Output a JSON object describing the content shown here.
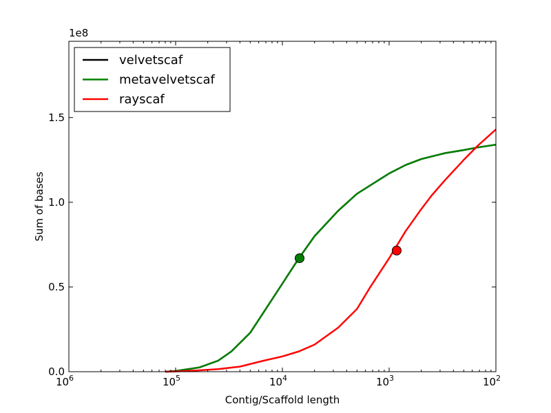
{
  "chart_data": {
    "type": "line",
    "xlabel": "Contig/Scaffold length",
    "ylabel": "Sum of bases",
    "y_offset_label": "1e8",
    "x_scale": "log",
    "x_inverted": true,
    "xlim": [
      1000000,
      100
    ],
    "ylim": [
      0,
      195000000
    ],
    "x_ticks": [
      {
        "value": 1000000,
        "base": "10",
        "exp": "6"
      },
      {
        "value": 100000,
        "base": "10",
        "exp": "5"
      },
      {
        "value": 10000,
        "base": "10",
        "exp": "4"
      },
      {
        "value": 1000,
        "base": "10",
        "exp": "3"
      },
      {
        "value": 100,
        "base": "10",
        "exp": "2"
      }
    ],
    "y_ticks": [
      {
        "value": 0,
        "label": "0.0"
      },
      {
        "value": 50000000,
        "label": "0.5"
      },
      {
        "value": 100000000,
        "label": "1.0"
      },
      {
        "value": 150000000,
        "label": "1.5"
      }
    ],
    "grid": false,
    "legend_position": "top-left",
    "series": [
      {
        "name": "velvetscaf",
        "color": "#000000",
        "x": [
          125000,
          100000,
          60000,
          40000,
          30000,
          20000,
          15000,
          10000,
          7000,
          5000,
          3000,
          2000,
          1000,
          700,
          500,
          300,
          200,
          150,
          100
        ],
        "y": [
          0,
          400000,
          2500000,
          6500000,
          12000000,
          23000000,
          35000000,
          52000000,
          67000000,
          80000000,
          95000000,
          105000000,
          117000000,
          122000000,
          125500000,
          129000000,
          130800000,
          132300000,
          134000000
        ]
      },
      {
        "name": "metavelvetscaf",
        "color": "#008000",
        "x": [
          125000,
          100000,
          60000,
          40000,
          30000,
          20000,
          15000,
          10000,
          7000,
          5000,
          3000,
          2000,
          1000,
          700,
          500,
          300,
          200,
          150,
          100
        ],
        "y": [
          0,
          400000,
          2500000,
          6500000,
          12000000,
          23000000,
          35000000,
          52000000,
          67000000,
          80000000,
          95000000,
          105000000,
          117000000,
          122000000,
          125500000,
          129000000,
          130800000,
          132300000,
          134000000
        ],
        "marker": {
          "x": 6900,
          "y": 67000000
        }
      },
      {
        "name": "rayscaf",
        "color": "#ff0000",
        "x": [
          125000,
          100000,
          60000,
          40000,
          25000,
          15000,
          10000,
          7000,
          5000,
          3000,
          2000,
          1500,
          1000,
          700,
          500,
          400,
          300,
          200,
          150,
          100
        ],
        "y": [
          0,
          150000,
          800000,
          1500000,
          3000000,
          6500000,
          9000000,
          12000000,
          16000000,
          26000000,
          37000000,
          50000000,
          67000000,
          83000000,
          96000000,
          104000000,
          113000000,
          125000000,
          133000000,
          143000000
        ],
        "marker": {
          "x": 850,
          "y": 71500000
        }
      }
    ]
  }
}
